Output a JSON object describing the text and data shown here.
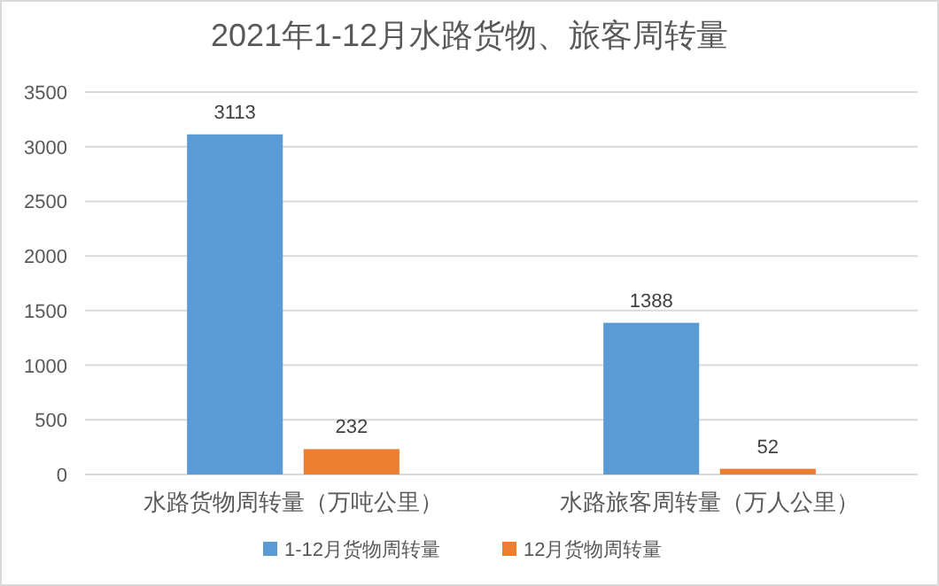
{
  "chart_data": {
    "type": "bar",
    "title": "2021年1-12月水路货物、旅客周转量",
    "categories": [
      "水路货物周转量（万吨公里）",
      "水路旅客周转量（万人公里）"
    ],
    "series": [
      {
        "name": "1-12月货物周转量",
        "color": "#5b9bd5",
        "values": [
          3113,
          1388
        ]
      },
      {
        "name": "12月货物周转量",
        "color": "#ed7d31",
        "values": [
          232,
          52
        ]
      }
    ],
    "ylim": [
      0,
      3500
    ],
    "yticks": [
      0,
      500,
      1000,
      1500,
      2000,
      2500,
      3000,
      3500
    ],
    "grid": "y",
    "legend": "bottom",
    "data_labels": true
  }
}
